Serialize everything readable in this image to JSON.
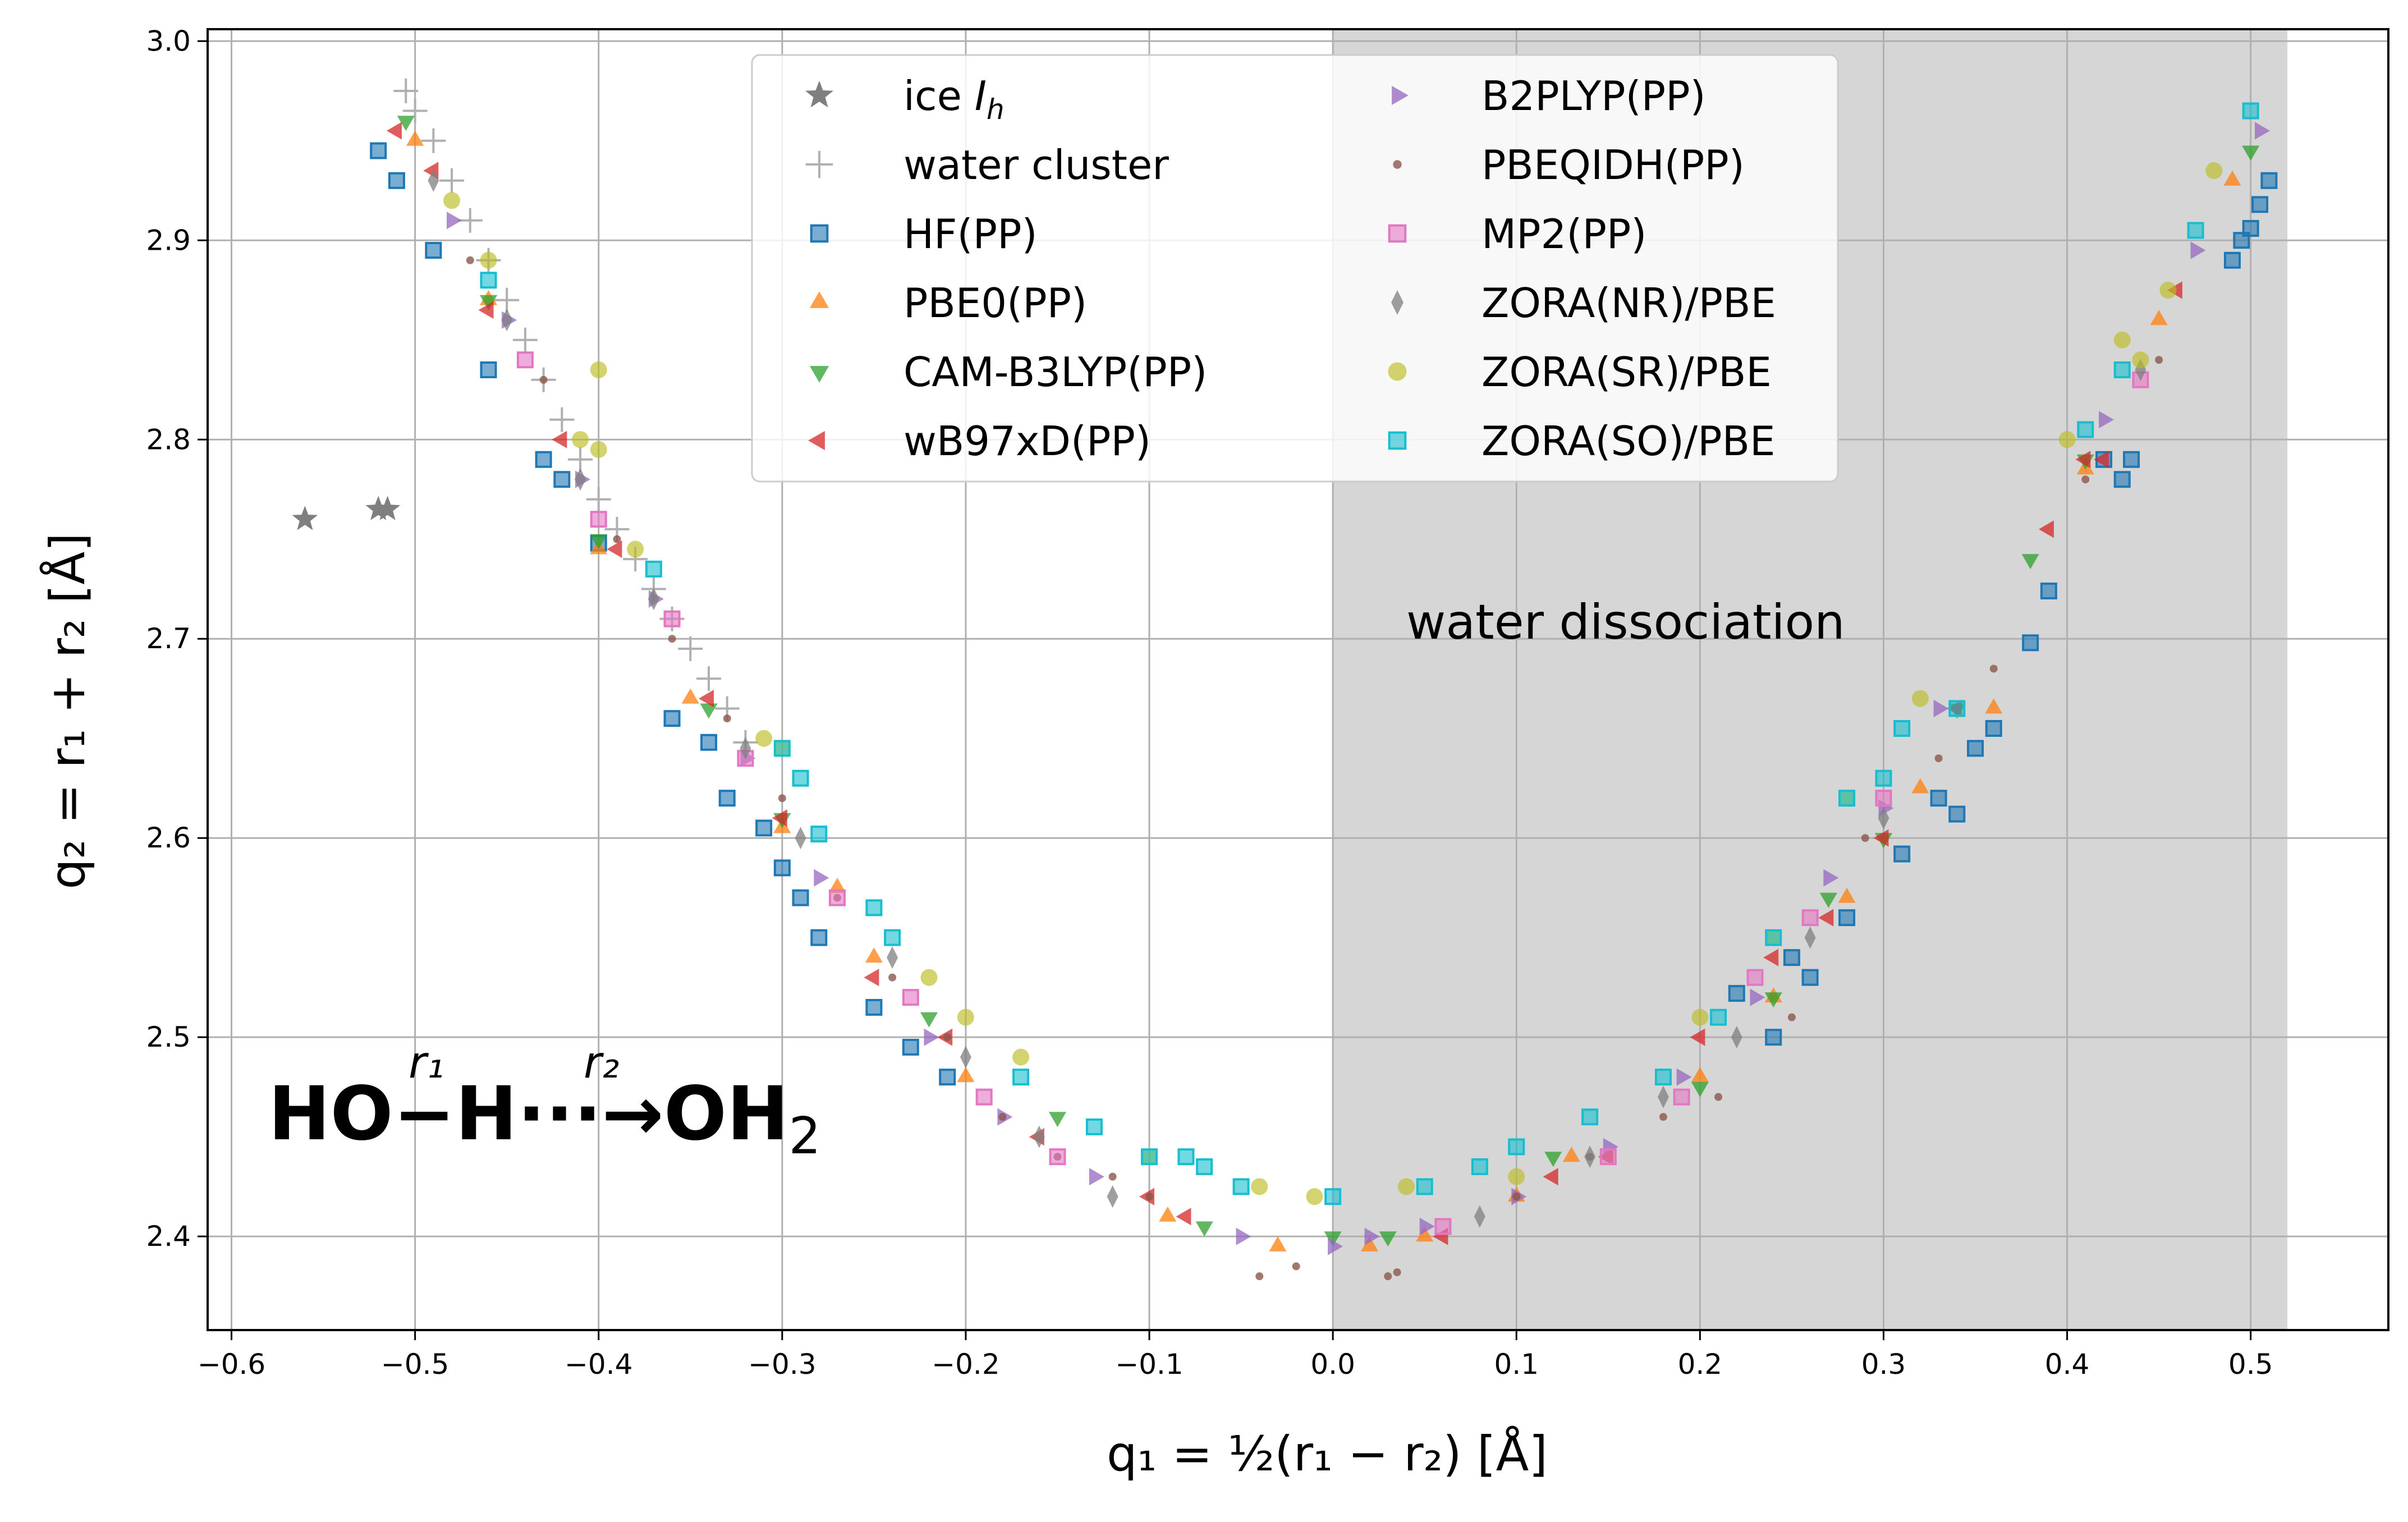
{
  "chart_data": {
    "type": "scatter",
    "xlabel": "q₁ = ½(r₁ − r₂) [Å]",
    "ylabel": "q₂ = r₁ + r₂ [Å]",
    "xlim": [
      -0.613,
      0.575
    ],
    "ylim": [
      2.353,
      3.006
    ],
    "x_ticks": [
      -0.6,
      -0.5,
      -0.4,
      -0.3,
      -0.2,
      -0.1,
      0.0,
      0.1,
      0.2,
      0.3,
      0.4,
      0.5
    ],
    "x_tick_labels": [
      "−0.6",
      "−0.5",
      "−0.4",
      "−0.3",
      "−0.2",
      "−0.1",
      "0.0",
      "0.1",
      "0.2",
      "0.3",
      "0.4",
      "0.5"
    ],
    "y_ticks": [
      2.4,
      2.5,
      2.6,
      2.7,
      2.8,
      2.9,
      3.0
    ],
    "y_tick_labels": [
      "2.4",
      "2.5",
      "2.6",
      "2.7",
      "2.8",
      "2.9",
      "3.0"
    ],
    "grid": true,
    "legend_position": "top-center",
    "shaded_region": {
      "x": [
        0.0,
        0.52
      ],
      "color": "#d6d6d6"
    },
    "annotation": {
      "text": "water dissociation",
      "x": 0.04,
      "y": 2.7
    },
    "reaction_label": {
      "left": "HO",
      "bond1": "−",
      "h": "H",
      "dots": "···",
      "arrow": "→",
      "right": "OH",
      "right_sub": "2",
      "r1": "r₁",
      "r2": "r₂"
    },
    "series": [
      {
        "name": "ice I_h",
        "legend_label": "ice ",
        "legend_italic": "I",
        "legend_sub": "h",
        "marker": "star",
        "color": "#7f7f7f",
        "points": [
          [
            -0.56,
            2.76
          ],
          [
            -0.52,
            2.765
          ],
          [
            -0.515,
            2.765
          ]
        ]
      },
      {
        "name": "water cluster",
        "marker": "plus",
        "color": "#b0b0b0",
        "points": [
          [
            -0.505,
            2.975
          ],
          [
            -0.5,
            2.965
          ],
          [
            -0.49,
            2.95
          ],
          [
            -0.48,
            2.93
          ],
          [
            -0.47,
            2.91
          ],
          [
            -0.46,
            2.89
          ],
          [
            -0.45,
            2.87
          ],
          [
            -0.44,
            2.85
          ],
          [
            -0.43,
            2.83
          ],
          [
            -0.42,
            2.81
          ],
          [
            -0.41,
            2.79
          ],
          [
            -0.4,
            2.77
          ],
          [
            -0.39,
            2.755
          ],
          [
            -0.38,
            2.74
          ],
          [
            -0.37,
            2.725
          ],
          [
            -0.36,
            2.71
          ],
          [
            -0.35,
            2.695
          ],
          [
            -0.34,
            2.68
          ],
          [
            -0.33,
            2.665
          ],
          [
            -0.32,
            2.648
          ]
        ]
      },
      {
        "name": "HF(PP)",
        "marker": "square",
        "color": "#1f77b4",
        "points": [
          [
            -0.52,
            2.945
          ],
          [
            -0.51,
            2.93
          ],
          [
            -0.49,
            2.895
          ],
          [
            -0.46,
            2.835
          ],
          [
            -0.43,
            2.79
          ],
          [
            -0.42,
            2.78
          ],
          [
            -0.4,
            2.748
          ],
          [
            -0.36,
            2.66
          ],
          [
            -0.34,
            2.648
          ],
          [
            -0.33,
            2.62
          ],
          [
            -0.31,
            2.605
          ],
          [
            -0.3,
            2.585
          ],
          [
            -0.29,
            2.57
          ],
          [
            -0.28,
            2.55
          ],
          [
            -0.25,
            2.515
          ],
          [
            -0.23,
            2.495
          ],
          [
            -0.21,
            2.48
          ],
          [
            0.33,
            2.62
          ],
          [
            0.31,
            2.592
          ],
          [
            0.34,
            2.612
          ],
          [
            0.28,
            2.56
          ],
          [
            0.25,
            2.54
          ],
          [
            0.22,
            2.522
          ],
          [
            0.24,
            2.5
          ],
          [
            0.26,
            2.53
          ],
          [
            0.35,
            2.645
          ],
          [
            0.36,
            2.655
          ],
          [
            0.38,
            2.698
          ],
          [
            0.39,
            2.724
          ],
          [
            0.42,
            2.79
          ],
          [
            0.43,
            2.78
          ],
          [
            0.435,
            2.79
          ],
          [
            0.49,
            2.89
          ],
          [
            0.495,
            2.9
          ],
          [
            0.5,
            2.906
          ],
          [
            0.505,
            2.918
          ],
          [
            0.51,
            2.93
          ]
        ]
      },
      {
        "name": "PBE0(PP)",
        "marker": "triangle-up",
        "color": "#ff7f0e",
        "points": [
          [
            -0.5,
            2.95
          ],
          [
            -0.46,
            2.87
          ],
          [
            -0.4,
            2.745
          ],
          [
            -0.35,
            2.67
          ],
          [
            -0.3,
            2.605
          ],
          [
            -0.27,
            2.575
          ],
          [
            -0.25,
            2.54
          ],
          [
            -0.2,
            2.48
          ],
          [
            -0.09,
            2.41
          ],
          [
            -0.03,
            2.395
          ],
          [
            0.02,
            2.395
          ],
          [
            0.05,
            2.4
          ],
          [
            0.1,
            2.42
          ],
          [
            0.13,
            2.44
          ],
          [
            0.2,
            2.48
          ],
          [
            0.24,
            2.52
          ],
          [
            0.28,
            2.57
          ],
          [
            0.32,
            2.625
          ],
          [
            0.36,
            2.665
          ],
          [
            0.41,
            2.785
          ],
          [
            0.45,
            2.86
          ],
          [
            0.49,
            2.93
          ]
        ]
      },
      {
        "name": "CAM-B3LYP(PP)",
        "marker": "triangle-down",
        "color": "#2ca02c",
        "points": [
          [
            -0.505,
            2.96
          ],
          [
            -0.46,
            2.87
          ],
          [
            -0.4,
            2.75
          ],
          [
            -0.34,
            2.665
          ],
          [
            -0.3,
            2.61
          ],
          [
            -0.22,
            2.51
          ],
          [
            -0.15,
            2.46
          ],
          [
            -0.07,
            2.405
          ],
          [
            0.0,
            2.4
          ],
          [
            0.03,
            2.4
          ],
          [
            0.12,
            2.44
          ],
          [
            0.2,
            2.475
          ],
          [
            0.24,
            2.52
          ],
          [
            0.27,
            2.57
          ],
          [
            0.3,
            2.6
          ],
          [
            0.34,
            2.665
          ],
          [
            0.38,
            2.74
          ],
          [
            0.41,
            2.79
          ],
          [
            0.5,
            2.945
          ]
        ]
      },
      {
        "name": "wB97xD(PP)",
        "marker": "triangle-left",
        "color": "#d62728",
        "points": [
          [
            -0.51,
            2.955
          ],
          [
            -0.49,
            2.935
          ],
          [
            -0.46,
            2.865
          ],
          [
            -0.42,
            2.8
          ],
          [
            -0.39,
            2.745
          ],
          [
            -0.34,
            2.67
          ],
          [
            -0.3,
            2.61
          ],
          [
            -0.25,
            2.53
          ],
          [
            -0.21,
            2.5
          ],
          [
            -0.16,
            2.45
          ],
          [
            -0.1,
            2.42
          ],
          [
            -0.08,
            2.41
          ],
          [
            0.06,
            2.4
          ],
          [
            0.12,
            2.43
          ],
          [
            0.15,
            2.44
          ],
          [
            0.2,
            2.5
          ],
          [
            0.24,
            2.54
          ],
          [
            0.27,
            2.56
          ],
          [
            0.3,
            2.6
          ],
          [
            0.34,
            2.665
          ],
          [
            0.39,
            2.755
          ],
          [
            0.41,
            2.79
          ],
          [
            0.42,
            2.79
          ],
          [
            0.46,
            2.875
          ]
        ]
      },
      {
        "name": "B2PLYP(PP)",
        "marker": "triangle-right",
        "color": "#9467bd",
        "points": [
          [
            -0.48,
            2.91
          ],
          [
            -0.45,
            2.86
          ],
          [
            -0.41,
            2.78
          ],
          [
            -0.37,
            2.72
          ],
          [
            -0.32,
            2.64
          ],
          [
            -0.28,
            2.58
          ],
          [
            -0.22,
            2.5
          ],
          [
            -0.18,
            2.46
          ],
          [
            -0.13,
            2.43
          ],
          [
            -0.05,
            2.4
          ],
          [
            0.0,
            2.395
          ],
          [
            0.02,
            2.4
          ],
          [
            0.05,
            2.405
          ],
          [
            0.1,
            2.42
          ],
          [
            0.15,
            2.445
          ],
          [
            0.19,
            2.48
          ],
          [
            0.23,
            2.52
          ],
          [
            0.27,
            2.58
          ],
          [
            0.3,
            2.615
          ],
          [
            0.33,
            2.665
          ],
          [
            0.42,
            2.81
          ],
          [
            0.47,
            2.895
          ],
          [
            0.505,
            2.955
          ]
        ]
      },
      {
        "name": "PBEQIDH(PP)",
        "marker": "dot",
        "color": "#8c564b",
        "points": [
          [
            -0.47,
            2.89
          ],
          [
            -0.43,
            2.83
          ],
          [
            -0.39,
            2.75
          ],
          [
            -0.36,
            2.7
          ],
          [
            -0.33,
            2.66
          ],
          [
            -0.3,
            2.62
          ],
          [
            -0.27,
            2.57
          ],
          [
            -0.24,
            2.53
          ],
          [
            -0.21,
            2.5
          ],
          [
            -0.18,
            2.46
          ],
          [
            -0.15,
            2.44
          ],
          [
            -0.12,
            2.43
          ],
          [
            -0.1,
            2.42
          ],
          [
            -0.04,
            2.38
          ],
          [
            -0.02,
            2.385
          ],
          [
            0.03,
            2.38
          ],
          [
            0.035,
            2.382
          ],
          [
            0.1,
            2.42
          ],
          [
            0.14,
            2.44
          ],
          [
            0.18,
            2.46
          ],
          [
            0.21,
            2.47
          ],
          [
            0.25,
            2.51
          ],
          [
            0.29,
            2.6
          ],
          [
            0.33,
            2.64
          ],
          [
            0.36,
            2.685
          ],
          [
            0.41,
            2.78
          ],
          [
            0.45,
            2.84
          ]
        ]
      },
      {
        "name": "MP2(PP)",
        "marker": "square",
        "color": "#e377c2",
        "points": [
          [
            -0.44,
            2.84
          ],
          [
            -0.4,
            2.76
          ],
          [
            -0.36,
            2.71
          ],
          [
            -0.32,
            2.64
          ],
          [
            -0.27,
            2.57
          ],
          [
            -0.23,
            2.52
          ],
          [
            -0.19,
            2.47
          ],
          [
            -0.15,
            2.44
          ],
          [
            0.06,
            2.405
          ],
          [
            0.15,
            2.44
          ],
          [
            0.19,
            2.47
          ],
          [
            0.23,
            2.53
          ],
          [
            0.26,
            2.56
          ],
          [
            0.3,
            2.62
          ],
          [
            0.44,
            2.83
          ]
        ]
      },
      {
        "name": "ZORA(NR)/PBE",
        "marker": "diamond",
        "color": "#7f7f7f",
        "points": [
          [
            -0.49,
            2.93
          ],
          [
            -0.45,
            2.86
          ],
          [
            -0.41,
            2.78
          ],
          [
            -0.37,
            2.72
          ],
          [
            -0.32,
            2.645
          ],
          [
            -0.29,
            2.6
          ],
          [
            -0.24,
            2.54
          ],
          [
            -0.2,
            2.49
          ],
          [
            -0.16,
            2.45
          ],
          [
            -0.12,
            2.42
          ],
          [
            0.08,
            2.41
          ],
          [
            0.14,
            2.44
          ],
          [
            0.18,
            2.47
          ],
          [
            0.22,
            2.5
          ],
          [
            0.26,
            2.55
          ],
          [
            0.3,
            2.61
          ],
          [
            0.44,
            2.835
          ]
        ]
      },
      {
        "name": "ZORA(SR)/PBE",
        "marker": "circle",
        "color": "#bcbd22",
        "points": [
          [
            -0.48,
            2.92
          ],
          [
            -0.46,
            2.89
          ],
          [
            -0.4,
            2.835
          ],
          [
            -0.41,
            2.8
          ],
          [
            -0.4,
            2.795
          ],
          [
            -0.38,
            2.745
          ],
          [
            -0.31,
            2.65
          ],
          [
            -0.3,
            2.645
          ],
          [
            -0.22,
            2.53
          ],
          [
            -0.2,
            2.51
          ],
          [
            -0.17,
            2.49
          ],
          [
            -0.1,
            2.44
          ],
          [
            -0.04,
            2.425
          ],
          [
            -0.01,
            2.42
          ],
          [
            0.04,
            2.425
          ],
          [
            0.1,
            2.43
          ],
          [
            0.2,
            2.51
          ],
          [
            0.24,
            2.55
          ],
          [
            0.28,
            2.62
          ],
          [
            0.32,
            2.67
          ],
          [
            0.4,
            2.8
          ],
          [
            0.43,
            2.85
          ],
          [
            0.44,
            2.84
          ],
          [
            0.455,
            2.875
          ],
          [
            0.48,
            2.935
          ]
        ]
      },
      {
        "name": "ZORA(SO)/PBE",
        "marker": "square",
        "color": "#17becf",
        "points": [
          [
            -0.46,
            2.88
          ],
          [
            -0.37,
            2.735
          ],
          [
            -0.3,
            2.645
          ],
          [
            -0.29,
            2.63
          ],
          [
            -0.28,
            2.602
          ],
          [
            -0.25,
            2.565
          ],
          [
            -0.24,
            2.55
          ],
          [
            -0.17,
            2.48
          ],
          [
            -0.13,
            2.455
          ],
          [
            -0.1,
            2.44
          ],
          [
            -0.08,
            2.44
          ],
          [
            -0.07,
            2.435
          ],
          [
            -0.05,
            2.425
          ],
          [
            0.0,
            2.42
          ],
          [
            0.05,
            2.425
          ],
          [
            0.08,
            2.435
          ],
          [
            0.1,
            2.445
          ],
          [
            0.14,
            2.46
          ],
          [
            0.18,
            2.48
          ],
          [
            0.21,
            2.51
          ],
          [
            0.24,
            2.55
          ],
          [
            0.28,
            2.62
          ],
          [
            0.3,
            2.63
          ],
          [
            0.31,
            2.655
          ],
          [
            0.34,
            2.665
          ],
          [
            0.41,
            2.805
          ],
          [
            0.43,
            2.835
          ],
          [
            0.47,
            2.905
          ],
          [
            0.5,
            2.965
          ]
        ]
      }
    ]
  }
}
